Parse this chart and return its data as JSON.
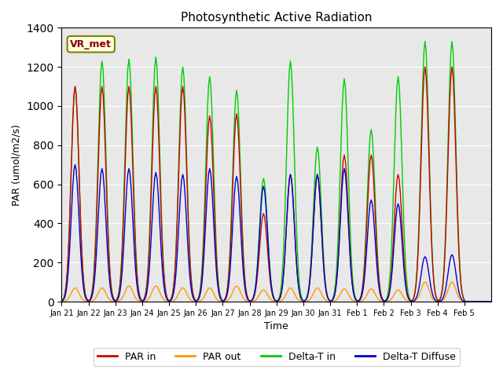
{
  "title": "Photosynthetic Active Radiation",
  "ylabel": "PAR (umol/m2/s)",
  "xlabel": "Time",
  "ylim": [
    0,
    1400
  ],
  "background_color": "#e8e8e8",
  "legend_label": "VR_met",
  "series": {
    "par_in_color": "#cc0000",
    "par_out_color": "#ff9900",
    "delta_t_in_color": "#00cc00",
    "delta_t_diffuse_color": "#0000cc"
  },
  "xtick_labels": [
    "Jan 21",
    "Jan 22",
    "Jan 23",
    "Jan 24",
    "Jan 25",
    "Jan 26",
    "Jan 27",
    "Jan 28",
    "Jan 29",
    "Jan 30",
    "Jan 31",
    "Feb 1",
    "Feb 2",
    "Feb 3",
    "Feb 4",
    "Feb 5"
  ],
  "legend_entries": [
    "PAR in",
    "PAR out",
    "Delta-T in",
    "Delta-T Diffuse"
  ],
  "par_in_peaks": [
    1100,
    1100,
    1100,
    1100,
    1100,
    950,
    960,
    450,
    650,
    650,
    750,
    750,
    650,
    1200,
    1200,
    0
  ],
  "par_out_peaks": [
    70,
    70,
    80,
    80,
    70,
    70,
    80,
    60,
    70,
    70,
    65,
    65,
    60,
    100,
    100,
    0
  ],
  "delta_t_peaks": [
    1100,
    1230,
    1240,
    1250,
    1200,
    1150,
    1080,
    630,
    1230,
    790,
    1140,
    880,
    1150,
    1330,
    1330,
    0
  ],
  "delta_d_peaks": [
    700,
    680,
    680,
    660,
    650,
    680,
    640,
    590,
    650,
    650,
    680,
    520,
    500,
    230,
    240,
    0
  ]
}
